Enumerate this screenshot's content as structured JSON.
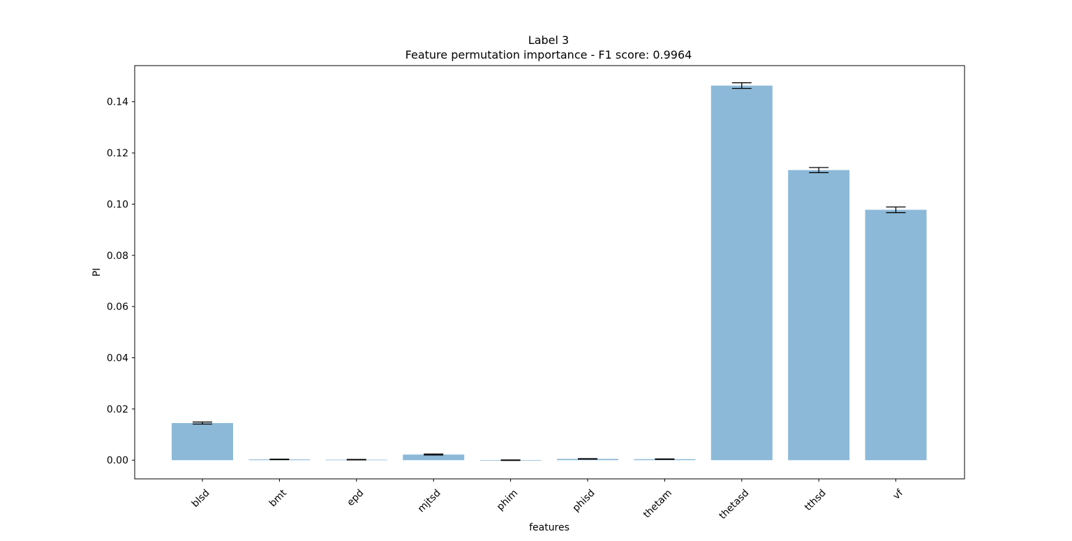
{
  "chart_data": {
    "type": "bar",
    "title": "Label 3",
    "subtitle": "Feature permutation importance - F1 score: 0.9964",
    "xlabel": "features",
    "ylabel": "PI",
    "categories": [
      "blsd",
      "bmt",
      "epd",
      "mjtsd",
      "phim",
      "phisd",
      "thetam",
      "thetasd",
      "tthsd",
      "vf"
    ],
    "values": [
      0.0145,
      0.0003,
      0.0002,
      0.0022,
      0.0,
      0.0005,
      0.0004,
      0.1463,
      0.1133,
      0.0978
    ],
    "errors": [
      0.0004,
      0.0001,
      0.0001,
      0.0002,
      0.0001,
      0.0001,
      0.0001,
      0.0011,
      0.001,
      0.0011
    ],
    "ylim": [
      -0.0073,
      0.1541
    ],
    "yticks": [
      0.0,
      0.02,
      0.04,
      0.06,
      0.08,
      0.1,
      0.12,
      0.14
    ],
    "ytick_labels": [
      "0.00",
      "0.02",
      "0.04",
      "0.06",
      "0.08",
      "0.10",
      "0.12",
      "0.14"
    ],
    "bar_color": "#8db9d8",
    "grid": false,
    "legend": "none"
  }
}
